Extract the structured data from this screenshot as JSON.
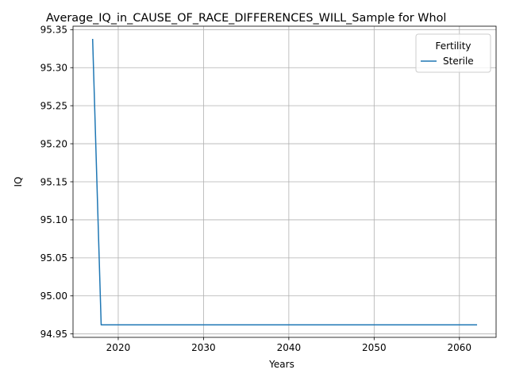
{
  "chart_data": {
    "type": "line",
    "title": "Average_IQ_in_CAUSE_OF_RACE_DIFFERENCES_WILL_Sample for Whol",
    "xlabel": "Years",
    "ylabel": "IQ",
    "xlim": [
      2014.7,
      2064.3
    ],
    "ylim": [
      94.9455,
      95.3545
    ],
    "xticks": [
      2020,
      2030,
      2040,
      2050,
      2060
    ],
    "xtick_labels": [
      "2020",
      "2030",
      "2040",
      "2050",
      "2060"
    ],
    "yticks": [
      94.95,
      95.0,
      95.05,
      95.1,
      95.15,
      95.2,
      95.25,
      95.3,
      95.35
    ],
    "ytick_labels": [
      "94.95",
      "95.00",
      "95.05",
      "95.10",
      "95.15",
      "95.20",
      "95.25",
      "95.30",
      "95.35"
    ],
    "grid": true,
    "legend": {
      "title": "Fertility",
      "placement": "top-right"
    },
    "series": [
      {
        "name": "Sterile",
        "color": "#1f77b4",
        "x": [
          2017,
          2018,
          2019,
          2020,
          2021,
          2022,
          2023,
          2024,
          2025,
          2026,
          2027,
          2028,
          2029,
          2030,
          2031,
          2032,
          2033,
          2034,
          2035,
          2036,
          2037,
          2038,
          2039,
          2040,
          2041,
          2042,
          2043,
          2044,
          2045,
          2046,
          2047,
          2048,
          2049,
          2050,
          2051,
          2052,
          2053,
          2054,
          2055,
          2056,
          2057,
          2058,
          2059,
          2060,
          2061,
          2062
        ],
        "y": [
          95.337,
          94.962,
          94.962,
          94.962,
          94.962,
          94.962,
          94.962,
          94.962,
          94.962,
          94.962,
          94.962,
          94.962,
          94.962,
          94.962,
          94.962,
          94.962,
          94.962,
          94.962,
          94.962,
          94.962,
          94.962,
          94.962,
          94.962,
          94.962,
          94.962,
          94.962,
          94.962,
          94.962,
          94.962,
          94.962,
          94.962,
          94.962,
          94.962,
          94.962,
          94.962,
          94.962,
          94.962,
          94.962,
          94.962,
          94.962,
          94.962,
          94.962,
          94.962,
          94.962,
          94.962,
          94.962
        ]
      }
    ]
  }
}
